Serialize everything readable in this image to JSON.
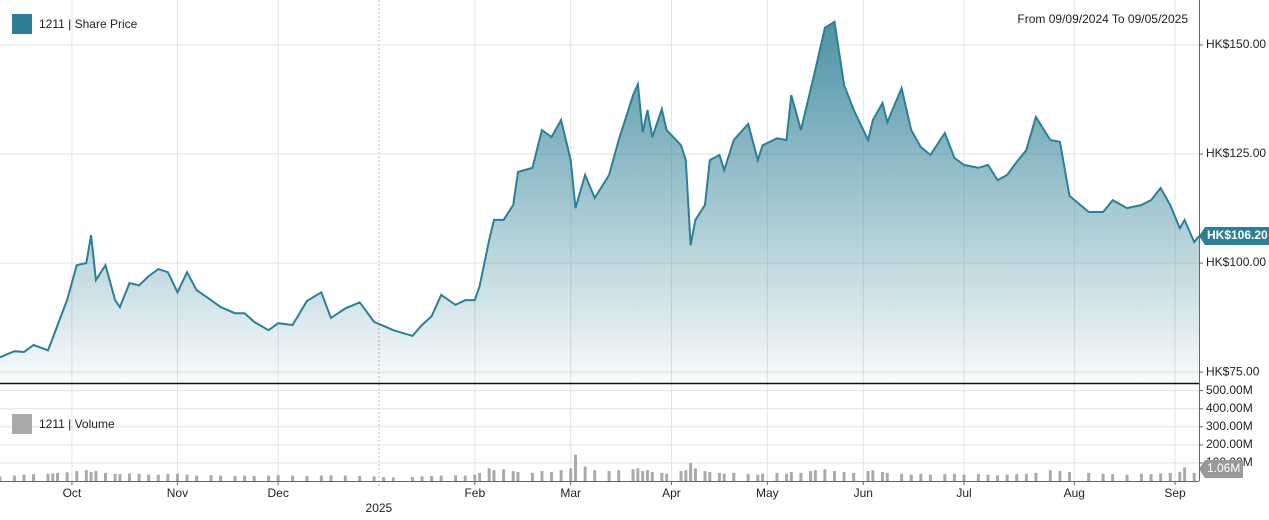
{
  "chart_data": {
    "type": "line",
    "range_label": "From 09/09/2024 To 09/05/2025",
    "x": [
      0,
      3,
      5,
      7,
      10,
      11,
      12,
      14,
      16,
      18,
      19,
      20,
      22,
      24,
      25,
      27,
      29,
      31,
      33,
      35,
      37,
      39,
      41,
      44,
      46,
      49,
      51,
      53,
      56,
      58,
      61,
      64,
      67,
      69,
      72,
      75,
      78,
      80,
      82,
      86,
      88,
      90,
      92,
      95,
      97,
      99,
      100,
      102,
      103,
      105,
      107,
      108,
      111,
      113,
      115,
      117,
      119,
      120,
      122,
      124,
      127,
      129,
      132,
      133,
      134,
      135,
      136,
      138,
      139,
      142,
      143,
      144,
      145,
      147,
      148,
      150,
      151,
      153,
      156,
      158,
      159,
      162,
      164,
      165,
      167,
      169,
      170,
      172,
      174,
      176,
      178,
      181,
      182,
      184,
      185,
      188,
      190,
      192,
      194,
      197,
      199,
      201,
      204,
      206,
      208,
      210,
      212,
      214,
      216,
      219,
      221,
      223,
      227,
      230,
      232,
      235,
      238,
      240,
      242,
      244,
      246,
      247,
      249,
      250
    ],
    "xlim": [
      0,
      250
    ],
    "xticks": [
      {
        "value": 15,
        "label": "Oct"
      },
      {
        "value": 37,
        "label": "Nov"
      },
      {
        "value": 58,
        "label": "Dec"
      },
      {
        "value": 99,
        "label": "Feb"
      },
      {
        "value": 119,
        "label": "Mar"
      },
      {
        "value": 140,
        "label": "Apr"
      },
      {
        "value": 160,
        "label": "May"
      },
      {
        "value": 180,
        "label": "Jun"
      },
      {
        "value": 201,
        "label": "Jul"
      },
      {
        "value": 224,
        "label": "Aug"
      },
      {
        "value": 245,
        "label": "Sep"
      }
    ],
    "year_tick": {
      "value": 79,
      "label": "2025"
    },
    "ylim": [
      72.5,
      160.3
    ],
    "yticks": [
      {
        "value": 75,
        "label": "HK$75.00"
      },
      {
        "value": 100,
        "label": "HK$100.00"
      },
      {
        "value": 125,
        "label": "HK$125.00"
      },
      {
        "value": 150,
        "label": "HK$150.00"
      }
    ],
    "y2lim": [
      0,
      537
    ],
    "y2ticks": [
      {
        "value": 100,
        "label": "100.00M"
      },
      {
        "value": 200,
        "label": "200.00M"
      },
      {
        "value": 300,
        "label": "300.00M"
      },
      {
        "value": 400,
        "label": "400.00M"
      },
      {
        "value": 500,
        "label": "500.00M"
      }
    ],
    "grid": true,
    "series": [
      {
        "name": "1211 | Share Price",
        "color": "#2d7f95",
        "last_label": "HK$106.20",
        "values": [
          78.4,
          79.8,
          79.6,
          81.2,
          80,
          82.8,
          85.8,
          91.5,
          99.5,
          100,
          106.4,
          96.1,
          99.5,
          91.5,
          89.9,
          95.4,
          94.9,
          97,
          98.6,
          97.9,
          93.3,
          97.9,
          93.8,
          91.5,
          89.9,
          88.5,
          88.5,
          86.5,
          84.6,
          86.2,
          85.8,
          91.3,
          93.3,
          87.4,
          89.6,
          91,
          86.5,
          85.6,
          84.6,
          83.3,
          85.8,
          87.8,
          92.7,
          90.4,
          91.5,
          91.5,
          94.7,
          105.3,
          109.9,
          109.9,
          113.3,
          120.9,
          121.8,
          130.5,
          128.9,
          132.8,
          123.6,
          112.6,
          120.2,
          114.9,
          120.2,
          128.2,
          138.5,
          141,
          130,
          135.1,
          128.9,
          135.3,
          130.5,
          127,
          123.6,
          104.1,
          109.9,
          113.3,
          123.6,
          124.8,
          121.3,
          128.2,
          131.9,
          123.6,
          127,
          128.6,
          128.2,
          138.5,
          130.5,
          139.7,
          144.3,
          153.9,
          155.3,
          140.8,
          135.1,
          128.2,
          132.8,
          136.7,
          132.3,
          140.1,
          130.5,
          126.6,
          124.8,
          129.8,
          124.1,
          122.5,
          121.8,
          122.5,
          119,
          120.2,
          123.2,
          125.9,
          133.5,
          128.2,
          127.8,
          115.4,
          111.7,
          111.7,
          114.4,
          112.6,
          113.3,
          114.4,
          117.2,
          113.3,
          108,
          109.9,
          104.8,
          106.2
        ]
      },
      {
        "name": "1211 | Volume",
        "color": "#aaaaaa",
        "axis": "y2",
        "last_label": "1.06M",
        "values": [
          25,
          30,
          35,
          38,
          40,
          42,
          45,
          48,
          55,
          60,
          50,
          55,
          45,
          40,
          38,
          42,
          40,
          35,
          35,
          38,
          40,
          35,
          30,
          32,
          30,
          28,
          30,
          28,
          30,
          32,
          30,
          28,
          30,
          32,
          30,
          28,
          25,
          22,
          20,
          22,
          25,
          28,
          30,
          32,
          30,
          35,
          45,
          70,
          60,
          65,
          55,
          50,
          45,
          55,
          50,
          60,
          70,
          145,
          80,
          60,
          55,
          60,
          65,
          70,
          55,
          60,
          50,
          45,
          40,
          55,
          60,
          100,
          70,
          55,
          50,
          45,
          40,
          45,
          40,
          35,
          40,
          45,
          40,
          50,
          45,
          55,
          60,
          65,
          55,
          50,
          45,
          55,
          60,
          50,
          45,
          40,
          35,
          40,
          35,
          38,
          40,
          35,
          38,
          35,
          32,
          35,
          38,
          40,
          45,
          60,
          55,
          50,
          45,
          40,
          38,
          35,
          40,
          38,
          42,
          45,
          50,
          75,
          45,
          1.06
        ]
      }
    ]
  }
}
